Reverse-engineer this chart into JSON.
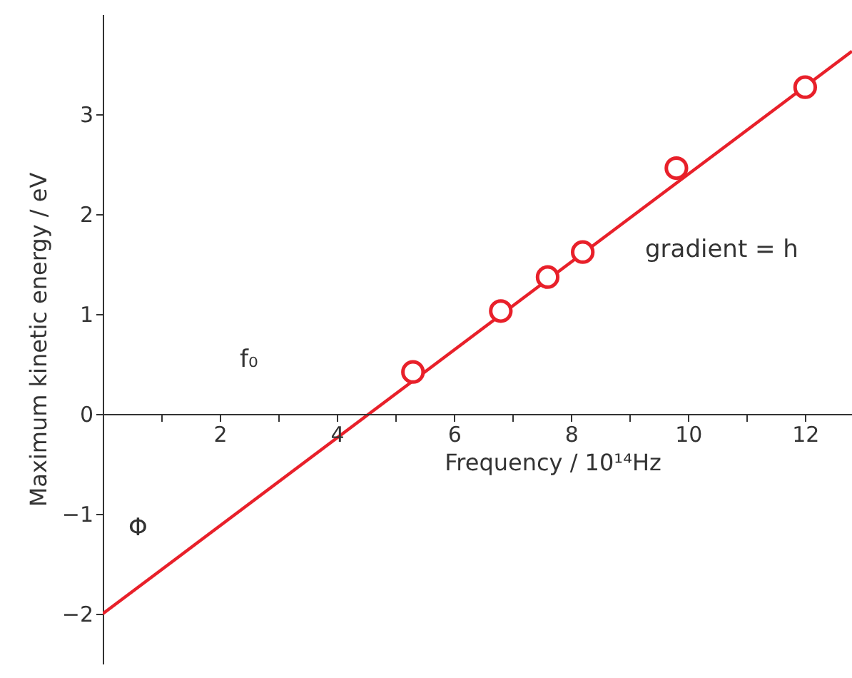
{
  "chart_data": {
    "type": "scatter",
    "xlabel": "Frequency / 10¹⁴Hz",
    "ylabel": "Maximum kinetic energy / eV",
    "xlim": [
      0,
      12.8
    ],
    "ylim": [
      -2.5,
      4
    ],
    "xticks": [
      {
        "value": 1,
        "label": null
      },
      2,
      {
        "value": 3,
        "label": null
      },
      4,
      {
        "value": 5,
        "label": null
      },
      6,
      {
        "value": 7,
        "label": null
      },
      8,
      {
        "value": 9,
        "label": null
      },
      10,
      {
        "value": 11,
        "label": null
      },
      12
    ],
    "yticks": [
      -2,
      -1,
      0,
      1,
      2,
      3
    ],
    "marker": "circle",
    "series": [
      {
        "type": "line",
        "marker": "none",
        "color": "#e8202a",
        "x": [
          0,
          12.8
        ],
        "values": [
          -2,
          3.63
        ]
      },
      {
        "color": "#e8202a",
        "x": [
          5.3,
          6.8,
          7.6,
          8.2,
          9.8,
          12
        ],
        "values": [
          0.42,
          1.03,
          1.37,
          1.62,
          2.46,
          3.27
        ]
      }
    ],
    "annotations": [
      "gradient = h",
      "f₀",
      "Φ"
    ]
  }
}
